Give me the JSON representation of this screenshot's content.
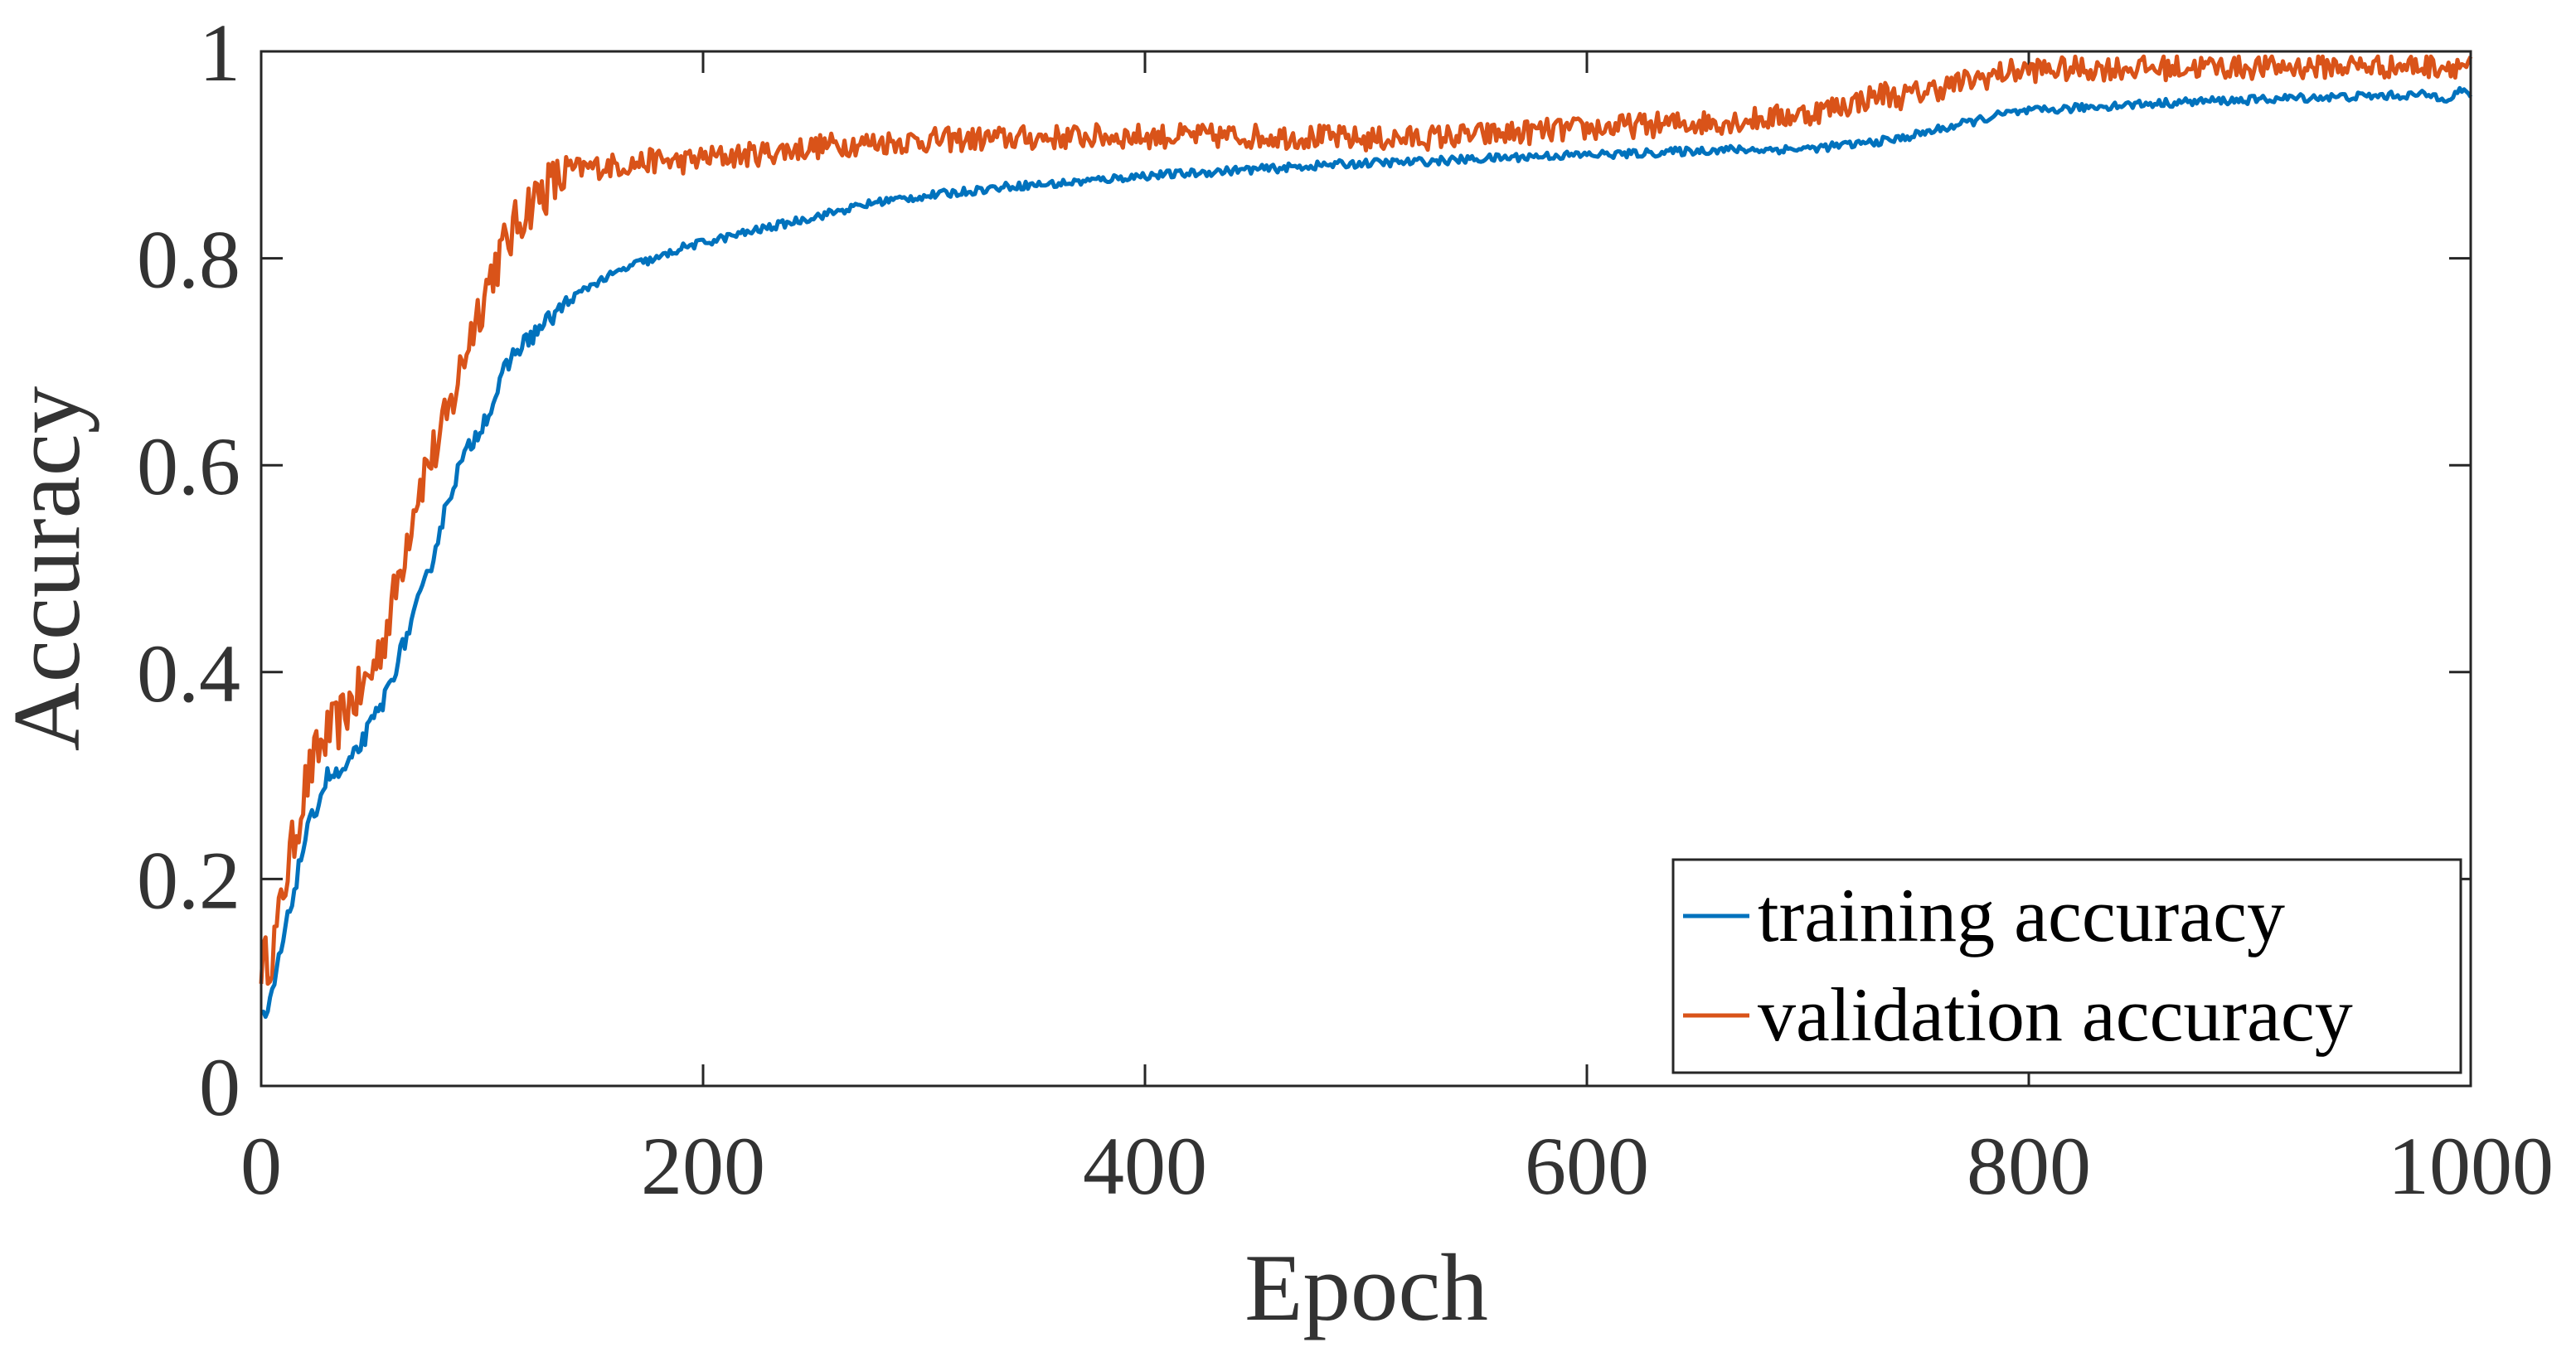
{
  "chart_data": {
    "type": "line",
    "title": "",
    "xlabel": "Epoch",
    "ylabel": "Accuracy",
    "xlim": [
      0,
      1000
    ],
    "ylim": [
      0,
      1
    ],
    "xticks": [
      0,
      200,
      400,
      600,
      800,
      1000
    ],
    "xtick_labels": [
      "0",
      "200",
      "400",
      "600",
      "800",
      "1000"
    ],
    "yticks": [
      0,
      0.2,
      0.4,
      0.6,
      0.8,
      1
    ],
    "ytick_labels": [
      "0",
      "0.2",
      "0.4",
      "0.6",
      "0.8",
      "1"
    ],
    "grid": false,
    "legend_position": "bottom-right",
    "series": [
      {
        "name": "training accuracy",
        "color": "#0072BD",
        "x": [
          0,
          2,
          5,
          10,
          15,
          20,
          25,
          30,
          35,
          40,
          45,
          50,
          55,
          60,
          65,
          70,
          75,
          80,
          85,
          90,
          95,
          100,
          105,
          110,
          115,
          120,
          125,
          130,
          135,
          140,
          150,
          160,
          170,
          180,
          190,
          200,
          220,
          240,
          260,
          280,
          300,
          320,
          340,
          360,
          380,
          400,
          420,
          440,
          460,
          480,
          500,
          520,
          540,
          560,
          580,
          600,
          620,
          640,
          660,
          680,
          700,
          720,
          740,
          760,
          770,
          780,
          790,
          800,
          820,
          840,
          860,
          880,
          900,
          920,
          940,
          960,
          980,
          990,
          995,
          1000
        ],
        "values": [
          0.07,
          0.06,
          0.09,
          0.14,
          0.19,
          0.24,
          0.27,
          0.3,
          0.3,
          0.31,
          0.33,
          0.35,
          0.37,
          0.4,
          0.43,
          0.46,
          0.49,
          0.53,
          0.57,
          0.6,
          0.62,
          0.64,
          0.66,
          0.69,
          0.71,
          0.72,
          0.73,
          0.74,
          0.75,
          0.76,
          0.775,
          0.785,
          0.795,
          0.8,
          0.81,
          0.815,
          0.825,
          0.835,
          0.845,
          0.855,
          0.86,
          0.865,
          0.87,
          0.872,
          0.876,
          0.88,
          0.882,
          0.885,
          0.887,
          0.89,
          0.892,
          0.893,
          0.895,
          0.897,
          0.899,
          0.9,
          0.901,
          0.903,
          0.905,
          0.905,
          0.906,
          0.91,
          0.915,
          0.925,
          0.93,
          0.935,
          0.94,
          0.942,
          0.945,
          0.948,
          0.95,
          0.952,
          0.953,
          0.955,
          0.956,
          0.957,
          0.958,
          0.955,
          0.962,
          0.958
        ]
      },
      {
        "name": "validation accuracy",
        "color": "#D95319",
        "x": [
          0,
          2,
          5,
          8,
          10,
          15,
          20,
          25,
          30,
          35,
          40,
          45,
          50,
          55,
          60,
          65,
          70,
          75,
          80,
          85,
          90,
          95,
          100,
          105,
          110,
          115,
          120,
          125,
          130,
          135,
          140,
          150,
          160,
          170,
          180,
          190,
          200,
          220,
          240,
          260,
          280,
          300,
          320,
          340,
          360,
          380,
          400,
          420,
          440,
          460,
          480,
          500,
          520,
          540,
          560,
          580,
          600,
          620,
          640,
          660,
          680,
          700,
          720,
          735,
          740,
          760,
          780,
          790,
          800,
          820,
          840,
          860,
          880,
          900,
          920,
          940,
          960,
          980,
          1000
        ],
        "values": [
          0.12,
          0.12,
          0.13,
          0.16,
          0.19,
          0.24,
          0.29,
          0.32,
          0.34,
          0.35,
          0.37,
          0.38,
          0.4,
          0.43,
          0.47,
          0.52,
          0.57,
          0.6,
          0.62,
          0.65,
          0.69,
          0.73,
          0.76,
          0.79,
          0.81,
          0.83,
          0.85,
          0.86,
          0.87,
          0.875,
          0.885,
          0.888,
          0.89,
          0.892,
          0.895,
          0.893,
          0.897,
          0.9,
          0.905,
          0.91,
          0.912,
          0.914,
          0.915,
          0.916,
          0.917,
          0.918,
          0.918,
          0.918,
          0.918,
          0.918,
          0.917,
          0.915,
          0.916,
          0.918,
          0.92,
          0.923,
          0.925,
          0.928,
          0.93,
          0.932,
          0.935,
          0.94,
          0.95,
          0.96,
          0.955,
          0.965,
          0.975,
          0.98,
          0.982,
          0.983,
          0.984,
          0.984,
          0.985,
          0.985,
          0.985,
          0.986,
          0.986,
          0.986,
          0.987
        ]
      }
    ]
  }
}
